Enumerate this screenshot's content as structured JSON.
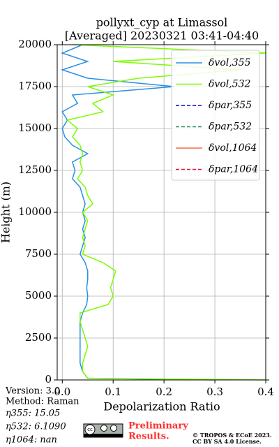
{
  "chart_data": {
    "type": "line",
    "title": "pollyxt_cyp at Limassol",
    "subtitle": "[Averaged] 20230321 03:41-04:40",
    "xlabel": "Depolarization Ratio",
    "ylabel": "Height (m)",
    "xlim": [
      -0.01,
      0.4
    ],
    "xticks": [
      {
        "value": 0,
        "label": "0.0"
      },
      0.1,
      0.2,
      0.3,
      0.4
    ],
    "ylim": [
      0,
      20000
    ],
    "yticks": [
      0,
      2500,
      5000,
      7500,
      10000,
      12500,
      15000,
      17500,
      20000
    ],
    "grid": true,
    "legend": "upper right",
    "heights": [
      0,
      100,
      500,
      1000,
      1500,
      2000,
      2500,
      3000,
      3500,
      4000,
      4500,
      5000,
      5500,
      6000,
      6500,
      7000,
      7500,
      8000,
      8500,
      9000,
      9500,
      10000,
      10500,
      11000,
      11500,
      12000,
      12500,
      13000,
      13500,
      14000,
      14500,
      15000,
      15500,
      16000,
      16500,
      17000,
      17500,
      18000,
      18500,
      19000,
      19500,
      20000
    ],
    "series": [
      {
        "name": "δvol,355",
        "color": "#2a8fe6",
        "dash": false,
        "values": [
          0.3,
          0.05,
          0.04,
          0.035,
          0.035,
          0.035,
          0.035,
          0.035,
          0.035,
          0.04,
          0.048,
          0.05,
          0.048,
          0.05,
          0.05,
          0.045,
          0.035,
          0.04,
          0.045,
          0.04,
          0.045,
          0.04,
          0.045,
          0.04,
          0.035,
          0.02,
          0.025,
          0.02,
          0.05,
          0.02,
          0.005,
          0,
          0.01,
          0,
          0.03,
          0.02,
          0.22,
          0.05,
          0,
          0.05,
          0,
          0.04
        ]
      },
      {
        "name": "δvol,532",
        "color": "#7cfc00",
        "dash": false,
        "values": [
          0.4,
          0.05,
          0.04,
          0.04,
          0.045,
          0.05,
          0.045,
          0.04,
          0.035,
          0.035,
          0.09,
          0.1,
          0.095,
          0.1,
          0.105,
          0.08,
          0.04,
          0.045,
          0.04,
          0.045,
          0.05,
          0.04,
          0.06,
          0.05,
          0.045,
          0.03,
          0.04,
          0.035,
          0.04,
          0.035,
          0.02,
          0.03,
          0.01,
          0.08,
          0.06,
          0.1,
          0.05,
          0.15,
          0.35,
          0.1,
          0.4,
          0.02
        ]
      },
      {
        "name": "δpar,355",
        "color": "#0000cd",
        "dash": true,
        "values": [
          null,
          null,
          null,
          null,
          null,
          null,
          null,
          null,
          null,
          null,
          null,
          null,
          null,
          null,
          null,
          null,
          null,
          null,
          null,
          null,
          null,
          null,
          null,
          null,
          null,
          null,
          null,
          null,
          null,
          null,
          null,
          null,
          null,
          null,
          null,
          null,
          null,
          null,
          null,
          null,
          null,
          null
        ]
      },
      {
        "name": "δpar,532",
        "color": "#2e8b57",
        "dash": true,
        "values": [
          null,
          null,
          null,
          null,
          null,
          null,
          null,
          null,
          null,
          null,
          null,
          null,
          null,
          null,
          null,
          null,
          null,
          null,
          null,
          null,
          null,
          null,
          null,
          null,
          null,
          null,
          null,
          null,
          null,
          null,
          null,
          null,
          null,
          null,
          null,
          null,
          null,
          null,
          null,
          null,
          null,
          null
        ]
      },
      {
        "name": "δvol,1064",
        "color": "#ff6347",
        "dash": false,
        "values": [
          null,
          null,
          null,
          null,
          null,
          null,
          null,
          null,
          null,
          null,
          null,
          null,
          null,
          null,
          null,
          null,
          null,
          null,
          null,
          null,
          null,
          null,
          null,
          null,
          null,
          null,
          null,
          null,
          null,
          null,
          null,
          null,
          null,
          null,
          null,
          null,
          null,
          null,
          null,
          null,
          null,
          null
        ]
      },
      {
        "name": "δpar,1064",
        "color": "#dc143c",
        "dash": true,
        "values": [
          null,
          null,
          null,
          null,
          null,
          null,
          null,
          null,
          null,
          null,
          null,
          null,
          null,
          null,
          null,
          null,
          null,
          null,
          null,
          null,
          null,
          null,
          null,
          null,
          null,
          null,
          null,
          null,
          null,
          null,
          null,
          null,
          null,
          null,
          null,
          null,
          null,
          null,
          null,
          null,
          null,
          null
        ]
      }
    ]
  },
  "info": {
    "version": "Version: 3.0",
    "method": "Method: Raman",
    "eta355": "η355:  15.05",
    "eta532": "η532: 6.1090",
    "eta1064": "η1064:    nan",
    "cc": "cc",
    "preliminary": "Preliminary",
    "results": "Results.",
    "copyright": "© TROPOS & ECoE 2023.",
    "license": "CC BY SA 4.0 License."
  }
}
